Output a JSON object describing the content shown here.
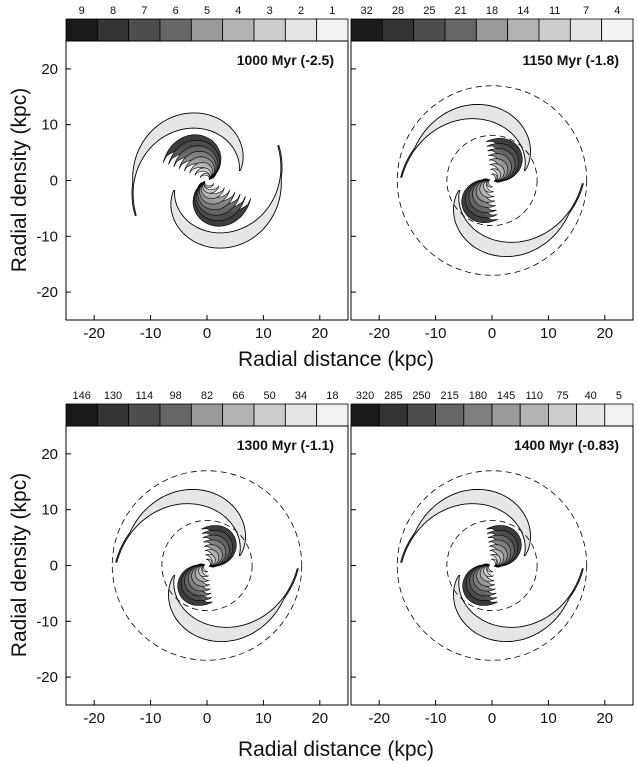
{
  "chart_data": {
    "type": "contour",
    "xlabel": "Radial distance (kpc)",
    "ylabel": "Radial density (kpc)",
    "xlim": [
      -25,
      25
    ],
    "ylim": [
      -25,
      25
    ],
    "xticks": [
      -20,
      -10,
      0,
      10,
      20
    ],
    "yticks": [
      -20,
      -10,
      0,
      10,
      20
    ],
    "panels": [
      {
        "title": "1000 Myr (-2.5)",
        "levels": [
          "9",
          "8",
          "7",
          "6",
          "5",
          "4",
          "3",
          "2",
          "1"
        ],
        "outer_radius": 14,
        "winding": 1.0,
        "core": 0.9,
        "ring_dashed": false
      },
      {
        "title": "1150 Myr (-1.8)",
        "levels": [
          "32",
          "28",
          "25",
          "21",
          "18",
          "14",
          "11",
          "7",
          "4"
        ],
        "outer_radius": 16,
        "winding": 0.85,
        "core": 0.75,
        "ring_dashed": true
      },
      {
        "title": "1300 Myr (-1.1)",
        "levels": [
          "146",
          "130",
          "114",
          "98",
          "82",
          "66",
          "50",
          "34",
          "18"
        ],
        "outer_radius": 16,
        "winding": 0.85,
        "core": 0.7,
        "ring_dashed": true
      },
      {
        "title": "1400 Myr (-0.83)",
        "levels": [
          "320",
          "285",
          "250",
          "215",
          "180",
          "145",
          "110",
          "75",
          "40",
          "5"
        ],
        "outer_radius": 16,
        "winding": 0.85,
        "core": 0.7,
        "ring_dashed": true
      }
    ],
    "colorbar_shades": [
      "#1a1a1a",
      "#333333",
      "#4d4d4d",
      "#666666",
      "#7f7f7f",
      "#999999",
      "#b3b3b3",
      "#cccccc",
      "#e5e5e5",
      "#f2f2f2"
    ]
  }
}
